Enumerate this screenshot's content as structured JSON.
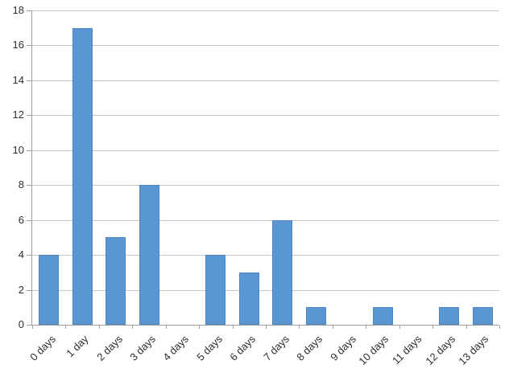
{
  "chart_data": {
    "type": "bar",
    "title": "",
    "xlabel": "",
    "ylabel": "",
    "categories": [
      "0 days",
      "1 day",
      "2 days",
      "3 days",
      "4 days",
      "5 days",
      "6 days",
      "7 days",
      "8 days",
      "9 days",
      "10 days",
      "11 days",
      "12 days",
      "13 days"
    ],
    "values": [
      4,
      17,
      5,
      8,
      0,
      4,
      3,
      6,
      1,
      0,
      1,
      0,
      1,
      1
    ],
    "ylim": [
      0,
      18
    ],
    "ytick_step": 2,
    "ytick_labels": [
      "0",
      "2",
      "4",
      "6",
      "8",
      "10",
      "12",
      "14",
      "16",
      "18"
    ],
    "grid": "horizontal",
    "legend": "none",
    "colors": {
      "bar_fill": "#5A96D2",
      "bar_border": "#4E87C4",
      "gridline": "#C6C6C6",
      "axis_line": "#9C9C9C",
      "tick": "#9C9C9C",
      "label_text": "#2E2E2E",
      "background": "#FFFFFF"
    }
  }
}
